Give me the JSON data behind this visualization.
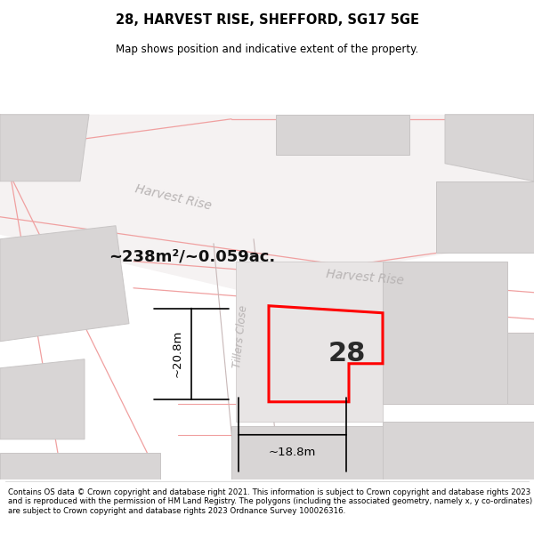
{
  "title": "28, HARVEST RISE, SHEFFORD, SG17 5GE",
  "subtitle": "Map shows position and indicative extent of the property.",
  "footer": "Contains OS data © Crown copyright and database right 2021. This information is subject to Crown copyright and database rights 2023 and is reproduced with the permission of HM Land Registry. The polygons (including the associated geometry, namely x, y co-ordinates) are subject to Crown copyright and database rights 2023 Ordnance Survey 100026316.",
  "area_label": "~238m²/~0.059ac.",
  "width_label": "~18.8m",
  "height_label": "~20.8m",
  "plot_number": "28",
  "street_label_1": "Harvest Rise",
  "street_label_2": "Harvest Rise",
  "street_label_3": "Tillers Close",
  "map_bg": "#f2f0f0",
  "road_stroke": "#f0a0a0",
  "road_stroke2": "#c8b8b8",
  "building_fill": "#d8d5d5",
  "building_edge": "#c8c5c5",
  "red_outline": "#ff0000",
  "street_text_color": "#b8b4b4",
  "title_color": "#000000",
  "white": "#ffffff"
}
